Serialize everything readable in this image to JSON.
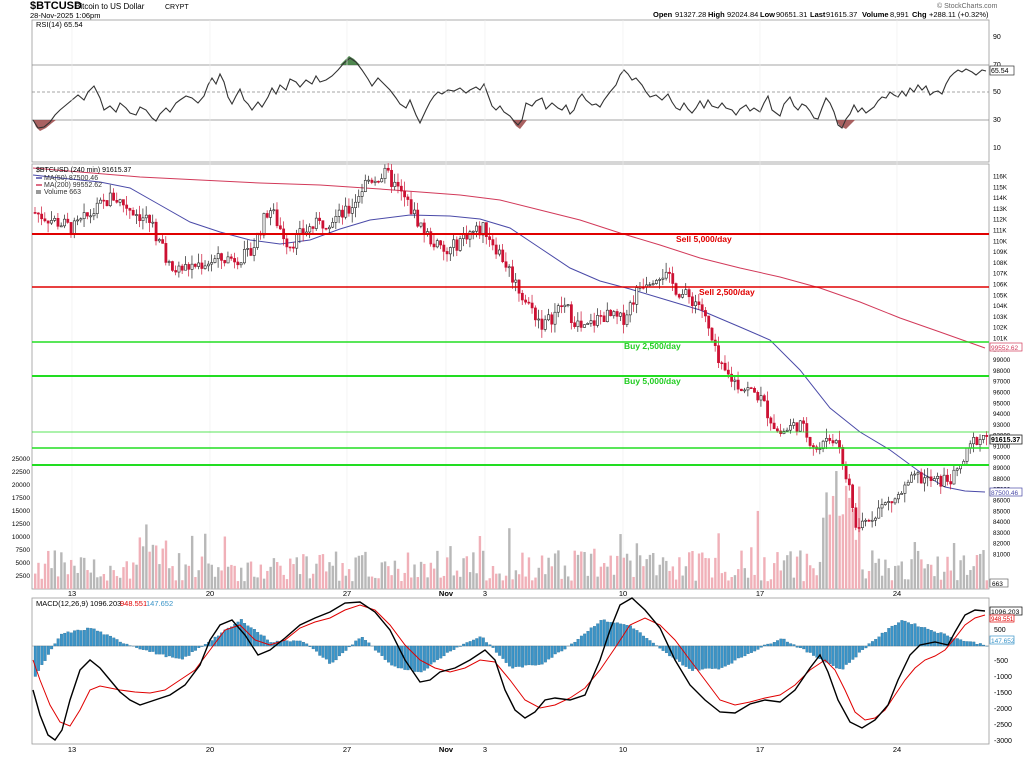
{
  "header": {
    "symbol": "$BTCUSD",
    "name": "Bitcoin to US Dollar",
    "exchange": "CRYPT",
    "date": "28-Nov-2025 1:06pm",
    "open_label": "Open",
    "open": "91327.28",
    "high_label": "High",
    "high": "92024.84",
    "low_label": "Low",
    "low": "90651.31",
    "last_label": "Last",
    "last": "91615.37",
    "volume_label": "Volume",
    "volume": "8,991",
    "chg_label": "Chg",
    "chg": "+288.11 (+0.32%)",
    "watermark": "© StockCharts.com"
  },
  "colors": {
    "up": "#222222",
    "down": "#cc1133",
    "ma50": "#4a4aa8",
    "ma200": "#d23a5a",
    "sell_line": "#e00000",
    "buy_line": "#22dd22",
    "vol_up": "#b8b8b8",
    "vol_down": "#f0b0b8",
    "macd_line": "#000000",
    "signal_line": "#e00000",
    "histogram": "#3a94c8",
    "rsi_line": "#333333"
  },
  "rsi_panel": {
    "label": "RSI(14) 65.54",
    "value": "65.54",
    "ticks": [
      "90",
      "70",
      "50",
      "30",
      "10"
    ]
  },
  "price_panel": {
    "legend": {
      "price": "$BTCUSD (240 min) 91615.37",
      "ma50": "MA(50) 87500.46",
      "ma200": "MA(200) 99552.62",
      "volume": "Volume 663"
    },
    "price_ticks": [
      "116K",
      "115K",
      "114K",
      "113K",
      "112K",
      "111K",
      "110K",
      "109K",
      "108K",
      "107K",
      "106K",
      "105K",
      "104K",
      "103K",
      "102K",
      "101K",
      "100K",
      "99000",
      "98000",
      "97000",
      "96000",
      "95000",
      "94000",
      "93000",
      "92000",
      "91000",
      "90000",
      "89000",
      "88000",
      "87000",
      "86000",
      "85000",
      "84000",
      "83000",
      "82000",
      "81000"
    ],
    "volume_ticks": [
      "25000",
      "22500",
      "20000",
      "17500",
      "15000",
      "12500",
      "10000",
      "7500",
      "5000",
      "2500"
    ],
    "tags": {
      "last": "91615.37",
      "ma50": "87500.46",
      "ma200": "99552.62",
      "volume": "663"
    },
    "annotations": {
      "sell5": "Sell 5,000/day",
      "sell2": "Sell 2,500/day",
      "buy2": "Buy 2,500/day",
      "buy5": "Buy 5,000/day"
    }
  },
  "macd_panel": {
    "label": "MACD(12,26,9)",
    "macd": "1096.203",
    "signal": "948.551",
    "hist": "147.652",
    "ticks": [
      "500",
      "-500",
      "-1000",
      "-1500",
      "-2000",
      "-2500",
      "-3000"
    ]
  },
  "x_axis": {
    "labels": [
      "13",
      "20",
      "27",
      "Nov",
      "3",
      "10",
      "17",
      "24"
    ]
  },
  "chart_data": {
    "type": "candlestick",
    "timeframe": "240 min",
    "price_axis_range": [
      80000,
      117000
    ],
    "levels": [
      {
        "label": "Sell 5,000/day",
        "price": 110000
      },
      {
        "label": "Sell 2,500/day",
        "price": 105000
      },
      {
        "label": "Buy 2,500/day",
        "price": 100000
      },
      {
        "label": "Buy 5,000/day",
        "price": 97000
      },
      {
        "label": "",
        "price": 92000
      },
      {
        "label": "",
        "price": 91000
      },
      {
        "label": "",
        "price": 89500
      }
    ],
    "price_path": [
      {
        "d": "Oct 10",
        "p": 112000
      },
      {
        "d": "Oct 12",
        "p": 110500
      },
      {
        "d": "Oct 14",
        "p": 113500
      },
      {
        "d": "Oct 16",
        "p": 111000
      },
      {
        "d": "Oct 17",
        "p": 106500
      },
      {
        "d": "Oct 19",
        "p": 107500
      },
      {
        "d": "Oct 21",
        "p": 108000
      },
      {
        "d": "Oct 22",
        "p": 112500
      },
      {
        "d": "Oct 23",
        "p": 109000
      },
      {
        "d": "Oct 24",
        "p": 110500
      },
      {
        "d": "Oct 26",
        "p": 112000
      },
      {
        "d": "Oct 27",
        "p": 115000
      },
      {
        "d": "Oct 28",
        "p": 115500
      },
      {
        "d": "Oct 29",
        "p": 113000
      },
      {
        "d": "Oct 30",
        "p": 110000
      },
      {
        "d": "Oct 31",
        "p": 108000
      },
      {
        "d": "Nov 1",
        "p": 110000
      },
      {
        "d": "Nov 2",
        "p": 110500
      },
      {
        "d": "Nov 3",
        "p": 107500
      },
      {
        "d": "Nov 4",
        "p": 104000
      },
      {
        "d": "Nov 5",
        "p": 101500
      },
      {
        "d": "Nov 6",
        "p": 103500
      },
      {
        "d": "Nov 7",
        "p": 101000
      },
      {
        "d": "Nov 8",
        "p": 102500
      },
      {
        "d": "Nov 9",
        "p": 102000
      },
      {
        "d": "Nov 10",
        "p": 105500
      },
      {
        "d": "Nov 11",
        "p": 106500
      },
      {
        "d": "Nov 12",
        "p": 104500
      },
      {
        "d": "Nov 13",
        "p": 103500
      },
      {
        "d": "Nov 14",
        "p": 97500
      },
      {
        "d": "Nov 15",
        "p": 96000
      },
      {
        "d": "Nov 16",
        "p": 95000
      },
      {
        "d": "Nov 17",
        "p": 91500
      },
      {
        "d": "Nov 18",
        "p": 92500
      },
      {
        "d": "Nov 19",
        "p": 90000
      },
      {
        "d": "Nov 20",
        "p": 91500
      },
      {
        "d": "Nov 21",
        "p": 82500
      },
      {
        "d": "Nov 22",
        "p": 84500
      },
      {
        "d": "Nov 23",
        "p": 85500
      },
      {
        "d": "Nov 24",
        "p": 87500
      },
      {
        "d": "Nov 25",
        "p": 87000
      },
      {
        "d": "Nov 26",
        "p": 87500
      },
      {
        "d": "Nov 27",
        "p": 91000
      },
      {
        "d": "Nov 28",
        "p": 91615
      }
    ],
    "ma50_last": 87500.46,
    "ma200_last": 99552.62,
    "rsi_last": 65.54,
    "macd_last": {
      "macd": 1096.203,
      "signal": 948.551,
      "hist": 147.652
    }
  }
}
